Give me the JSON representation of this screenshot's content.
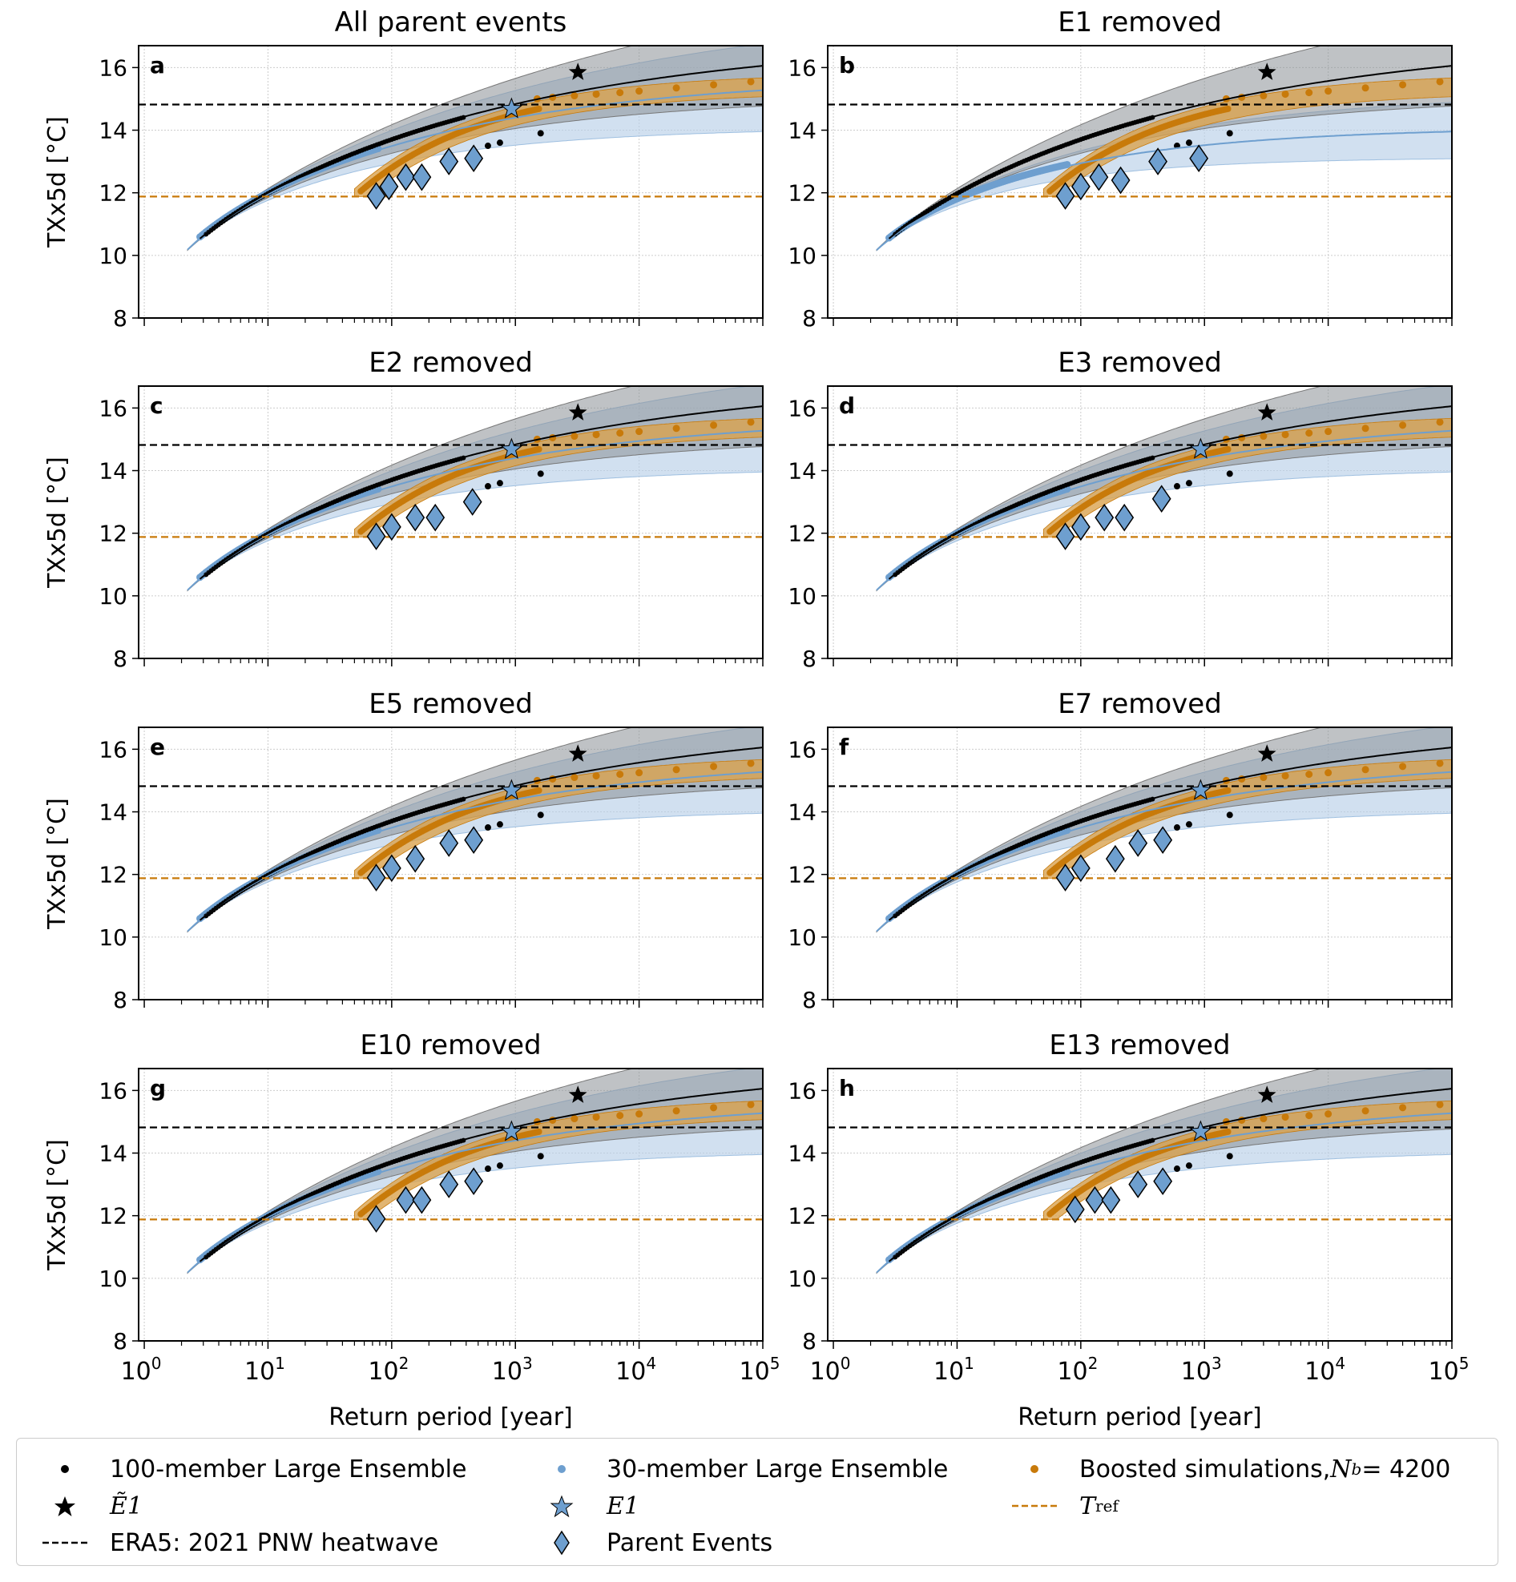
{
  "chart_data": [
    {
      "panel": "a",
      "title": "All parent events",
      "type": "line",
      "removed": null,
      "parent_events": [
        [
          75,
          11.9
        ],
        [
          95,
          12.2
        ],
        [
          130,
          12.5
        ],
        [
          175,
          12.5
        ],
        [
          290,
          13.0
        ],
        [
          460,
          13.1
        ]
      ]
    },
    {
      "panel": "b",
      "title": "E1 removed",
      "type": "line",
      "removed": "E1",
      "parent_events": [
        [
          75,
          11.9
        ],
        [
          100,
          12.2
        ],
        [
          140,
          12.5
        ],
        [
          210,
          12.4
        ],
        [
          420,
          13.0
        ],
        [
          900,
          13.1
        ]
      ]
    },
    {
      "panel": "c",
      "title": "E2 removed",
      "type": "line",
      "removed": "E2",
      "parent_events": [
        [
          75,
          11.9
        ],
        [
          100,
          12.2
        ],
        [
          155,
          12.5
        ],
        [
          225,
          12.5
        ],
        [
          450,
          13.0
        ]
      ]
    },
    {
      "panel": "d",
      "title": "E3 removed",
      "type": "line",
      "removed": "E3",
      "parent_events": [
        [
          75,
          11.9
        ],
        [
          100,
          12.2
        ],
        [
          155,
          12.5
        ],
        [
          225,
          12.5
        ],
        [
          450,
          13.1
        ]
      ]
    },
    {
      "panel": "e",
      "title": "E5 removed",
      "type": "line",
      "removed": "E5",
      "parent_events": [
        [
          75,
          11.9
        ],
        [
          100,
          12.2
        ],
        [
          155,
          12.5
        ],
        [
          290,
          13.0
        ],
        [
          460,
          13.1
        ]
      ]
    },
    {
      "panel": "f",
      "title": "E7 removed",
      "type": "line",
      "removed": "E7",
      "parent_events": [
        [
          75,
          11.9
        ],
        [
          100,
          12.2
        ],
        [
          190,
          12.5
        ],
        [
          290,
          13.0
        ],
        [
          460,
          13.1
        ]
      ]
    },
    {
      "panel": "g",
      "title": "E10 removed",
      "type": "line",
      "removed": "E10",
      "parent_events": [
        [
          75,
          11.9
        ],
        [
          130,
          12.5
        ],
        [
          175,
          12.5
        ],
        [
          290,
          13.0
        ],
        [
          460,
          13.1
        ]
      ]
    },
    {
      "panel": "h",
      "title": "E13 removed",
      "type": "line",
      "removed": "E13",
      "parent_events": [
        [
          90,
          12.2
        ],
        [
          130,
          12.5
        ],
        [
          175,
          12.5
        ],
        [
          290,
          13.0
        ],
        [
          460,
          13.1
        ]
      ]
    }
  ],
  "axes": {
    "xlabel": "Return period [year]",
    "ylabel": "TXx5d [°C]",
    "xscale": "log",
    "xlim": [
      0.9,
      100000
    ],
    "ylim": [
      8,
      16.7
    ],
    "yticks": [
      8,
      10,
      12,
      14,
      16
    ],
    "xticks": [
      1,
      10,
      100,
      1000,
      10000,
      100000
    ],
    "xtick_labels": [
      {
        "base": "10",
        "exp": "0"
      },
      {
        "base": "10",
        "exp": "1"
      },
      {
        "base": "10",
        "exp": "2"
      },
      {
        "base": "10",
        "exp": "3"
      },
      {
        "base": "10",
        "exp": "4"
      },
      {
        "base": "10",
        "exp": "5"
      }
    ],
    "grid": true
  },
  "reference": {
    "era5_2021_pnw_heatwave": 14.82,
    "t_ref": 11.88,
    "e1_tilde": {
      "return_period": 3200,
      "value": 15.85
    },
    "e1": {
      "return_period": 930,
      "value": 14.68,
      "hidden_in": [
        "b"
      ]
    }
  },
  "fits": {
    "ensemble_100": {
      "loc": 9.5,
      "scale": 1.35,
      "shape": -0.18,
      "ci_low_shape": -0.24,
      "ci_high_shape": -0.13
    },
    "ensemble_30": {
      "loc": 9.5,
      "scale": 1.38,
      "shape": -0.22,
      "ci_low_shape": -0.3,
      "ci_high_shape": -0.16
    }
  },
  "boosted_top_points": [
    [
      1500,
      15.0
    ],
    [
      2000,
      15.05
    ],
    [
      3000,
      15.1
    ],
    [
      4500,
      15.15
    ],
    [
      7000,
      15.2
    ],
    [
      10000,
      15.25
    ],
    [
      20000,
      15.35
    ],
    [
      40000,
      15.45
    ],
    [
      80000,
      15.55
    ]
  ],
  "ensemble_100_tail": [
    [
      600,
      13.5
    ],
    [
      750,
      13.6
    ],
    [
      1600,
      13.9
    ]
  ],
  "colors": {
    "black": "#000000",
    "blue": "#6e9fcf",
    "blue_fill": "#b8d0e8",
    "gray_fill": "#8a8f96",
    "orange": "#c87a0a",
    "orange_fill": "#d9a24f"
  },
  "legend": {
    "items": [
      {
        "label": "100-member Large Ensemble",
        "symbol": "black-dot"
      },
      {
        "label": "30-member Large Ensemble",
        "symbol": "blue-dot"
      },
      {
        "label": "Boosted simulations, ",
        "math": "N",
        "sub": "b",
        "suffix": " = 4200",
        "symbol": "orange-dot"
      },
      {
        "label": "",
        "math": "Ẽ1",
        "symbol": "black-star"
      },
      {
        "label": "",
        "math": "E1",
        "symbol": "blue-star"
      },
      {
        "label": "",
        "math": "T",
        "sub": "ref",
        "symbol": "orange-dashed"
      },
      {
        "label": "ERA5: 2021 PNW heatwave",
        "symbol": "black-dashed"
      },
      {
        "label": "Parent Events",
        "symbol": "blue-diamond"
      }
    ]
  }
}
